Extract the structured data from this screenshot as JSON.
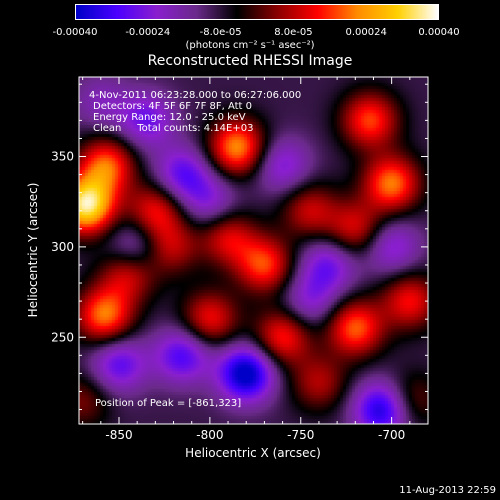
{
  "colorbar": {
    "ticks": [
      "-0.00040",
      "-0.00024",
      "-8.0e-05",
      "8.0e-05",
      "0.00024",
      "0.00040"
    ],
    "tick_values": [
      -0.0004,
      -0.00024,
      -8e-05,
      8e-05,
      0.00024,
      0.0004
    ],
    "range": [
      -0.0004,
      0.0004
    ],
    "units": "(photons cm⁻² s⁻¹ asec⁻²)",
    "colors": [
      "#0000c8",
      "#4b00ff",
      "#8a1fcf",
      "#6a2a8a",
      "#000000",
      "#8a0000",
      "#ff0000",
      "#ff8c00",
      "#ffd000",
      "#ffffff"
    ]
  },
  "chart_data": {
    "type": "heatmap",
    "title": "Reconstructed RHESSI Image",
    "xlabel": "Heliocentric X (arcsec)",
    "ylabel": "Heliocentric Y (arcsec)",
    "xlim": [
      -872,
      -680
    ],
    "ylim": [
      202,
      394
    ],
    "x_ticks": [
      -850,
      -800,
      -750,
      -700
    ],
    "y_ticks": [
      250,
      300,
      350
    ],
    "x_tick_labels": [
      "-850",
      "-800",
      "-750",
      "-700"
    ],
    "y_tick_labels": [
      "250",
      "300",
      "350"
    ],
    "annotations": [
      "4-Nov-2011 06:23:28.000 to 06:27:06.000",
      "Detectors: 4F 5F 6F 7F 8F, Att 0",
      "Energy Range: 12.0 - 25.0 keV",
      "Clean     Total counts: 4.14E+03"
    ],
    "peak_label": "Position of Peak = [-861,323]",
    "peak": [
      -861,
      323
    ],
    "sources": [
      {
        "x": -868,
        "y": 323,
        "v": 0.00045
      },
      {
        "x": -857,
        "y": 345,
        "v": 0.00028
      },
      {
        "x": -830,
        "y": 320,
        "v": 0.00022
      },
      {
        "x": -822,
        "y": 300,
        "v": 0.00018
      },
      {
        "x": -858,
        "y": 262,
        "v": 0.0003
      },
      {
        "x": -845,
        "y": 285,
        "v": 0.0002
      },
      {
        "x": -785,
        "y": 355,
        "v": 0.00032
      },
      {
        "x": -790,
        "y": 305,
        "v": 0.0002
      },
      {
        "x": -770,
        "y": 290,
        "v": 0.00026
      },
      {
        "x": -745,
        "y": 320,
        "v": 0.00018
      },
      {
        "x": -712,
        "y": 370,
        "v": 0.00026
      },
      {
        "x": -700,
        "y": 335,
        "v": 0.0003
      },
      {
        "x": -720,
        "y": 310,
        "v": 0.0002
      },
      {
        "x": -800,
        "y": 260,
        "v": 0.00022
      },
      {
        "x": -760,
        "y": 250,
        "v": 0.00024
      },
      {
        "x": -720,
        "y": 255,
        "v": 0.00028
      },
      {
        "x": -690,
        "y": 270,
        "v": 0.00022
      },
      {
        "x": -740,
        "y": 225,
        "v": 0.00016
      },
      {
        "x": -690,
        "y": 215,
        "v": 0.00014
      },
      {
        "x": -870,
        "y": 215,
        "v": 0.00012
      },
      {
        "x": -835,
        "y": 370,
        "v": -0.00018
      },
      {
        "x": -815,
        "y": 340,
        "v": -0.0002
      },
      {
        "x": -840,
        "y": 300,
        "v": -0.00016
      },
      {
        "x": -800,
        "y": 325,
        "v": -0.00014
      },
      {
        "x": -760,
        "y": 345,
        "v": -0.00016
      },
      {
        "x": -735,
        "y": 290,
        "v": -0.00018
      },
      {
        "x": -700,
        "y": 300,
        "v": -0.00016
      },
      {
        "x": -780,
        "y": 230,
        "v": -0.00034
      },
      {
        "x": -815,
        "y": 240,
        "v": -0.00022
      },
      {
        "x": -850,
        "y": 235,
        "v": -0.0002
      },
      {
        "x": -705,
        "y": 210,
        "v": -0.0003
      },
      {
        "x": -745,
        "y": 270,
        "v": -0.00014
      },
      {
        "x": -860,
        "y": 380,
        "v": -0.0001
      }
    ]
  },
  "timestamp": "11-Aug-2013 22:59"
}
